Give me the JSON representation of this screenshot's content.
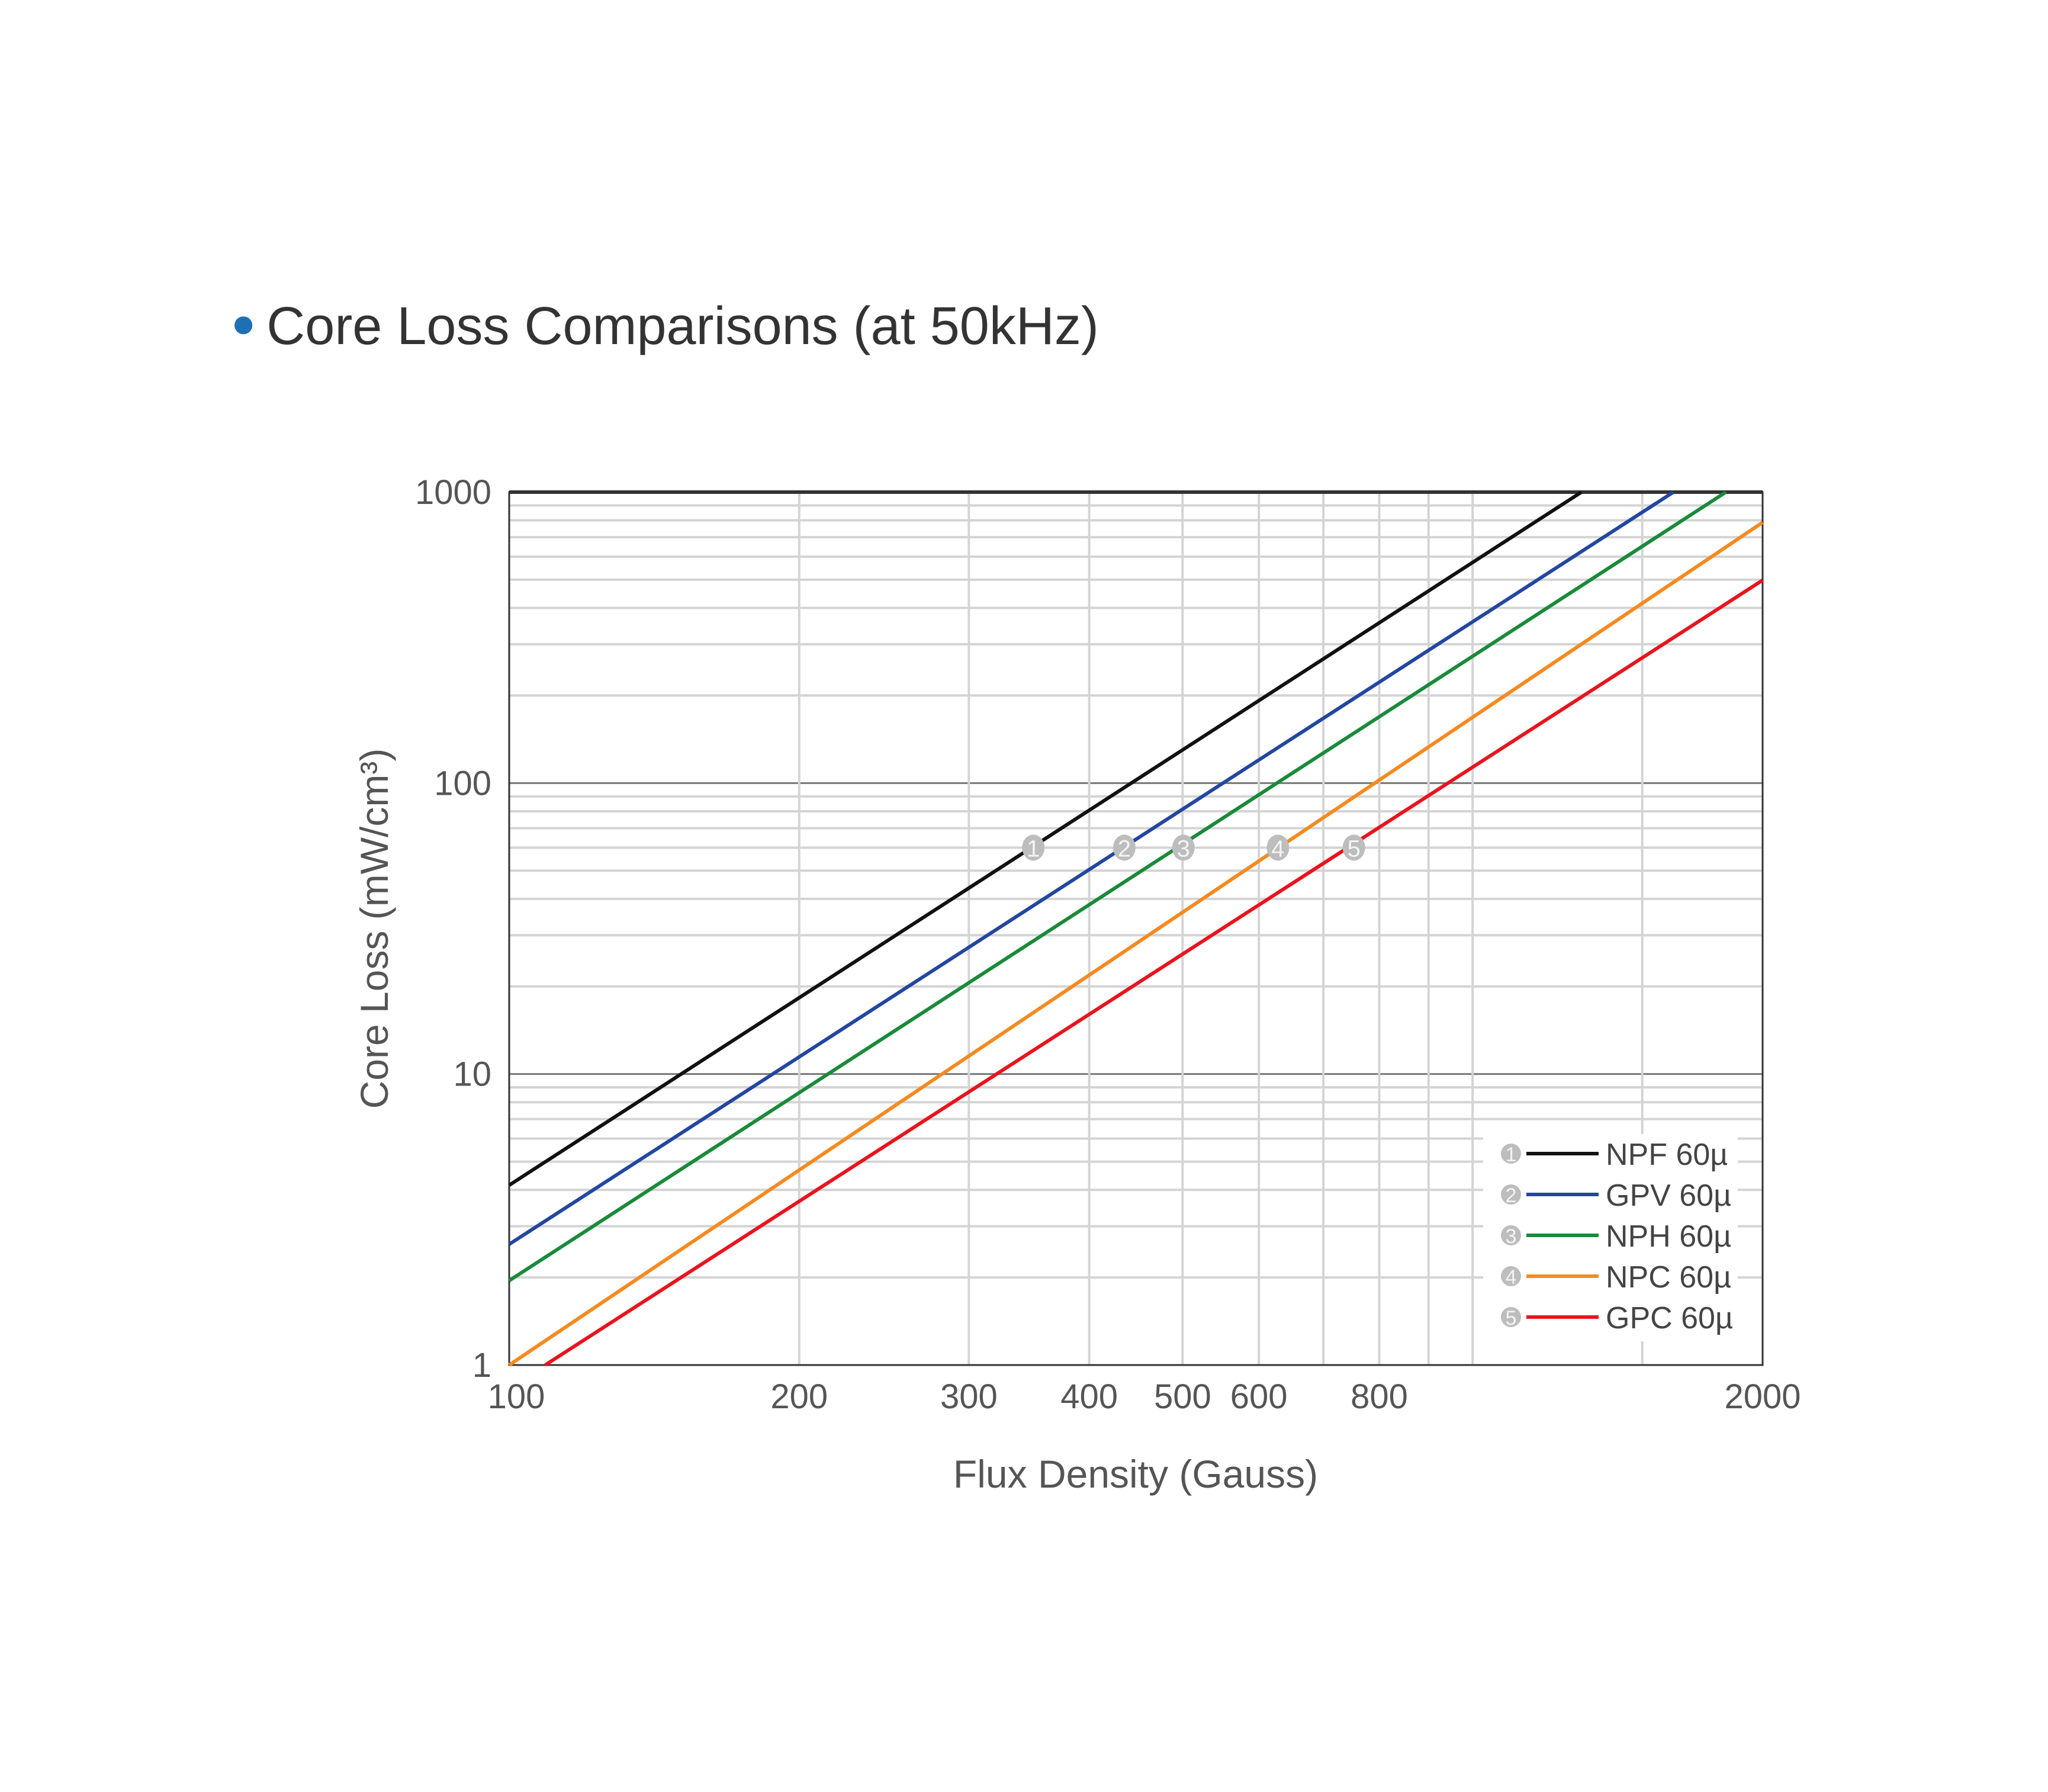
{
  "chart_data": {
    "type": "line",
    "title": "Core Loss Comparisons (at 50kHz)",
    "xlabel": "Flux Density (Gauss)",
    "ylabel": "Core Loss (mW/cm³)",
    "x_scale": "log",
    "y_scale": "log",
    "xlim": [
      100,
      2000
    ],
    "ylim": [
      1,
      1000
    ],
    "x_ticks": [
      "100",
      "200",
      "300",
      "400",
      "500",
      "600",
      "800",
      "2000"
    ],
    "x_tick_values": [
      100,
      200,
      300,
      400,
      500,
      600,
      800,
      2000
    ],
    "y_ticks": [
      "1",
      "10",
      "100",
      "1000"
    ],
    "y_tick_values": [
      1,
      10,
      100,
      1000
    ],
    "grid": true,
    "legend_position": "bottom-right",
    "series": [
      {
        "name": "NPF 60µ",
        "marker": "1",
        "color": "#111111",
        "x": [
          100,
          1297
        ],
        "y": [
          4.15,
          1000
        ],
        "marker_point": [
          350,
          60
        ]
      },
      {
        "name": "GPV 60µ",
        "marker": "2",
        "color": "#2347a0",
        "x": [
          100,
          1616
        ],
        "y": [
          2.6,
          1000
        ],
        "marker_point": [
          435,
          60
        ]
      },
      {
        "name": "NPH 60µ",
        "marker": "3",
        "color": "#1a8a3a",
        "x": [
          100,
          1832
        ],
        "y": [
          1.95,
          1000
        ],
        "marker_point": [
          501,
          60
        ]
      },
      {
        "name": "NPC 60µ",
        "marker": "4",
        "color": "#f58a1f",
        "x": [
          100,
          2000
        ],
        "y": [
          1.0,
          787
        ],
        "marker_point": [
          628,
          60
        ]
      },
      {
        "name": "GPC 60µ",
        "marker": "5",
        "color": "#e8141e",
        "x": [
          109,
          2000
        ],
        "y": [
          1.0,
          498
        ],
        "marker_point": [
          753,
          60
        ]
      }
    ]
  }
}
